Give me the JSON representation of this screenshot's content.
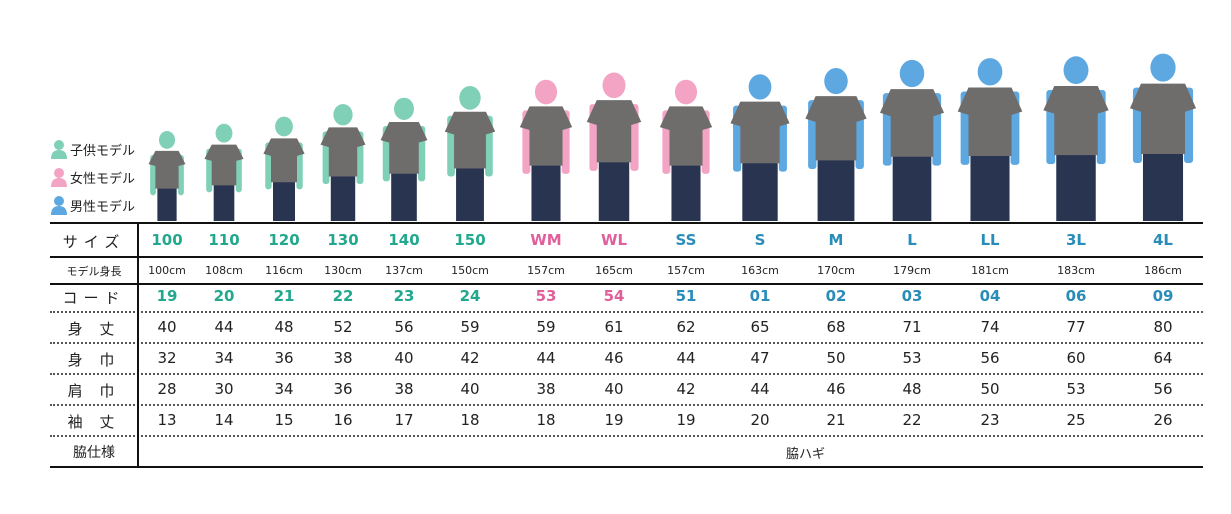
{
  "legend": [
    {
      "label": "子供モデル",
      "group": "kids",
      "icon": "person-icon"
    },
    {
      "label": "女性モデル",
      "group": "women",
      "icon": "person-icon"
    },
    {
      "label": "男性モデル",
      "group": "men",
      "icon": "person-icon"
    }
  ],
  "colors": {
    "kids": "#22a88c",
    "women": "#e0609c",
    "men": "#2a8cb8",
    "kids_figure": "#80d0b8",
    "women_figure": "#f3a3c3",
    "men_figure": "#5ea8e2",
    "shirt": "#6f6d6c",
    "jeans": "#283450"
  },
  "row_labels": {
    "size": "サイズ",
    "model_height": "モデル身長",
    "code": "コード",
    "body_length": "身 丈",
    "body_width": "身 巾",
    "shoulder_width": "肩 巾",
    "sleeve_length": "袖 丈",
    "armpit_spec": "脇仕様"
  },
  "armpit_spec_value": "脇ハギ",
  "columns": [
    {
      "size": "100",
      "height": "100cm",
      "height_cm": 100,
      "code": "19",
      "body_length": "40",
      "body_width": "32",
      "shoulder_width": "28",
      "sleeve_length": "13",
      "group": "kids",
      "size_color": "kids",
      "code_color": "kids"
    },
    {
      "size": "110",
      "height": "108cm",
      "height_cm": 108,
      "code": "20",
      "body_length": "44",
      "body_width": "34",
      "shoulder_width": "30",
      "sleeve_length": "14",
      "group": "kids",
      "size_color": "kids",
      "code_color": "kids"
    },
    {
      "size": "120",
      "height": "116cm",
      "height_cm": 116,
      "code": "21",
      "body_length": "48",
      "body_width": "36",
      "shoulder_width": "34",
      "sleeve_length": "15",
      "group": "kids",
      "size_color": "kids",
      "code_color": "kids"
    },
    {
      "size": "130",
      "height": "130cm",
      "height_cm": 130,
      "code": "22",
      "body_length": "52",
      "body_width": "38",
      "shoulder_width": "36",
      "sleeve_length": "16",
      "group": "kids",
      "size_color": "kids",
      "code_color": "kids"
    },
    {
      "size": "140",
      "height": "137cm",
      "height_cm": 137,
      "code": "23",
      "body_length": "56",
      "body_width": "40",
      "shoulder_width": "38",
      "sleeve_length": "17",
      "group": "kids",
      "size_color": "kids",
      "code_color": "kids"
    },
    {
      "size": "150",
      "height": "150cm",
      "height_cm": 150,
      "code": "24",
      "body_length": "59",
      "body_width": "42",
      "shoulder_width": "40",
      "sleeve_length": "18",
      "group": "kids",
      "size_color": "kids",
      "code_color": "kids"
    },
    {
      "size": "WM",
      "height": "157cm",
      "height_cm": 157,
      "code": "53",
      "body_length": "59",
      "body_width": "44",
      "shoulder_width": "38",
      "sleeve_length": "18",
      "group": "women",
      "size_color": "women",
      "code_color": "women"
    },
    {
      "size": "WL",
      "height": "165cm",
      "height_cm": 165,
      "code": "54",
      "body_length": "61",
      "body_width": "46",
      "shoulder_width": "40",
      "sleeve_length": "19",
      "group": "women",
      "size_color": "women",
      "code_color": "women"
    },
    {
      "size": "SS",
      "height": "157cm",
      "height_cm": 157,
      "code": "51",
      "body_length": "62",
      "body_width": "44",
      "shoulder_width": "42",
      "sleeve_length": "19",
      "group": "women",
      "size_color": "men",
      "code_color": "men"
    },
    {
      "size": "S",
      "height": "163cm",
      "height_cm": 163,
      "code": "01",
      "body_length": "65",
      "body_width": "47",
      "shoulder_width": "44",
      "sleeve_length": "20",
      "group": "men",
      "size_color": "men",
      "code_color": "men"
    },
    {
      "size": "M",
      "height": "170cm",
      "height_cm": 170,
      "code": "02",
      "body_length": "68",
      "body_width": "50",
      "shoulder_width": "46",
      "sleeve_length": "21",
      "group": "men",
      "size_color": "men",
      "code_color": "men"
    },
    {
      "size": "L",
      "height": "179cm",
      "height_cm": 179,
      "code": "03",
      "body_length": "71",
      "body_width": "53",
      "shoulder_width": "48",
      "sleeve_length": "22",
      "group": "men",
      "size_color": "men",
      "code_color": "men"
    },
    {
      "size": "LL",
      "height": "181cm",
      "height_cm": 181,
      "code": "04",
      "body_length": "74",
      "body_width": "56",
      "shoulder_width": "50",
      "sleeve_length": "23",
      "group": "men",
      "size_color": "men",
      "code_color": "men"
    },
    {
      "size": "3L",
      "height": "183cm",
      "height_cm": 183,
      "code": "06",
      "body_length": "77",
      "body_width": "60",
      "shoulder_width": "53",
      "sleeve_length": "25",
      "group": "men",
      "size_color": "men",
      "code_color": "men"
    },
    {
      "size": "4L",
      "height": "186cm",
      "height_cm": 186,
      "code": "09",
      "body_length": "80",
      "body_width": "64",
      "shoulder_width": "56",
      "sleeve_length": "26",
      "group": "men",
      "size_color": "men",
      "code_color": "men"
    }
  ]
}
